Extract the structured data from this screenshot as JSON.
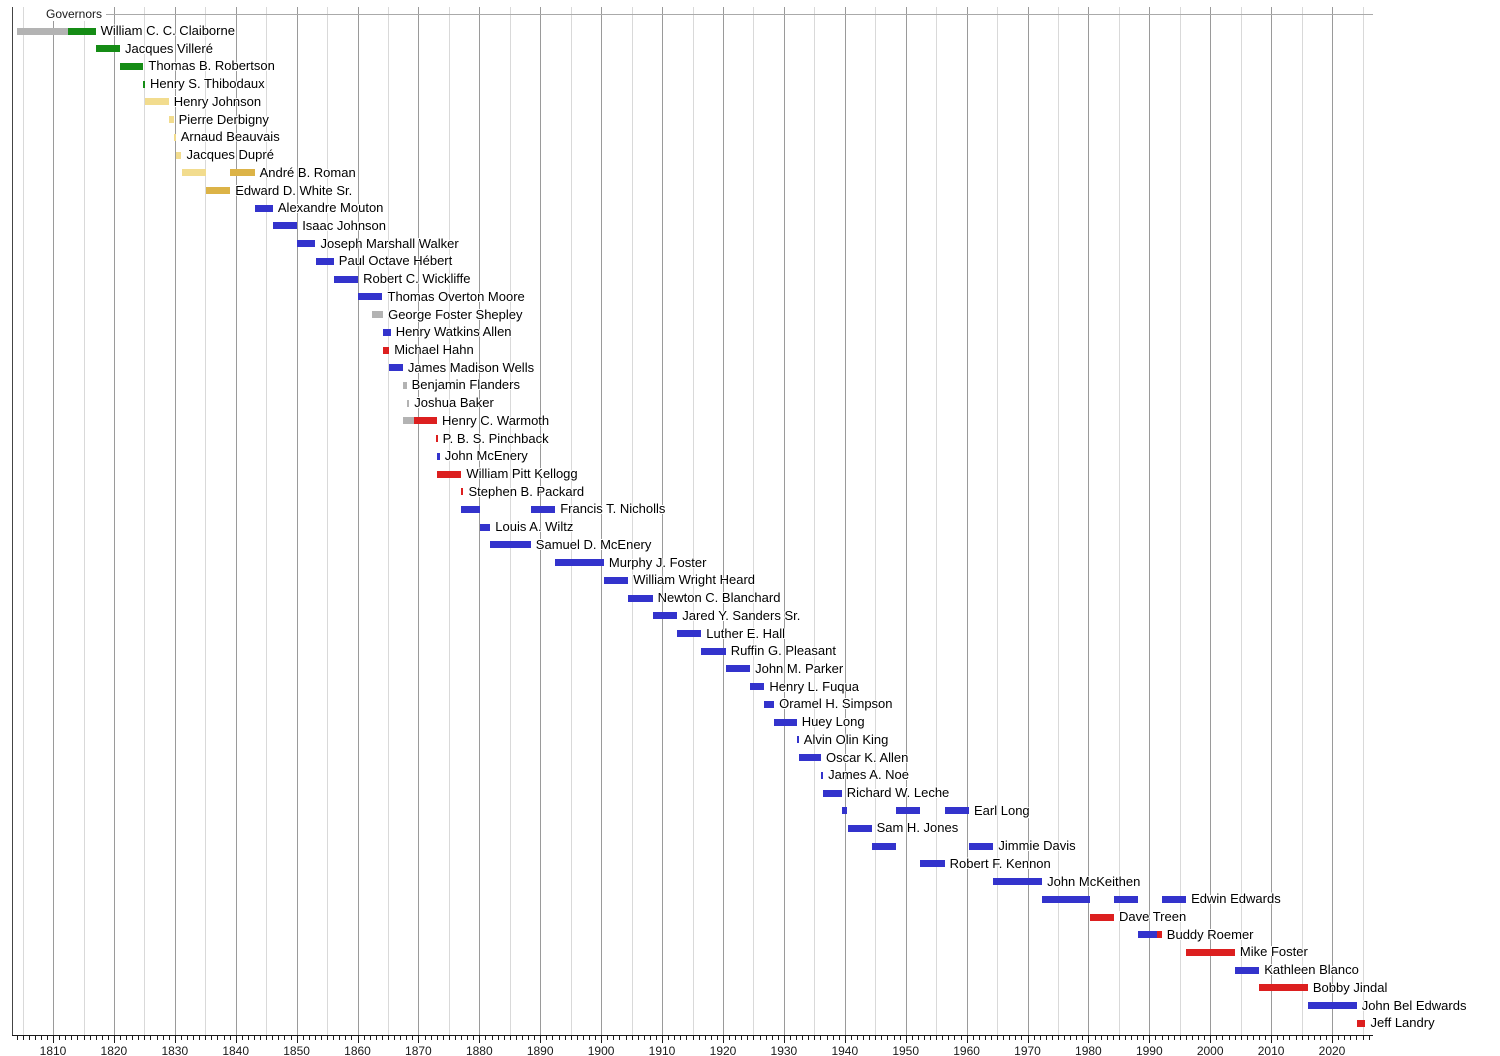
{
  "title": "Governors",
  "chart_data": {
    "type": "bar",
    "variant": "timeline-gantt",
    "axis": {
      "orientation": "horizontal-time",
      "start_year": 1803,
      "end_year": 2026,
      "gridline_interval_years": 5,
      "minor_tick_interval_years": 1,
      "tick_labels": [
        "1810",
        "1820",
        "1830",
        "1840",
        "1850",
        "1860",
        "1870",
        "1880",
        "1890",
        "1900",
        "1910",
        "1920",
        "1930",
        "1940",
        "1950",
        "1960",
        "1970",
        "1980",
        "1990",
        "2000",
        "2010",
        "2020"
      ]
    },
    "colors": {
      "gray": "#b3b3b3",
      "green": "#158c15",
      "paleyellow": "#f2dc8e",
      "gold": "#dcb347",
      "blue": "#3333cc",
      "red": "#dc1f1f"
    },
    "governors": [
      {
        "name": "William C. C. Claiborne",
        "segments": [
          {
            "from": 1804.0,
            "to": 1812.5,
            "color": "gray"
          },
          {
            "from": 1812.5,
            "to": 1817.0,
            "color": "green"
          }
        ]
      },
      {
        "name": "Jacques Villeré",
        "segments": [
          {
            "from": 1817.0,
            "to": 1821.0,
            "color": "green"
          }
        ]
      },
      {
        "name": "Thomas B. Robertson",
        "segments": [
          {
            "from": 1821.0,
            "to": 1824.85,
            "color": "green"
          }
        ]
      },
      {
        "name": "Henry S. Thibodaux",
        "segments": [
          {
            "from": 1824.85,
            "to": 1825.1,
            "color": "green"
          }
        ]
      },
      {
        "name": "Henry Johnson",
        "segments": [
          {
            "from": 1825.1,
            "to": 1829.0,
            "color": "paleyellow"
          }
        ]
      },
      {
        "name": "Pierre Derbigny",
        "segments": [
          {
            "from": 1829.0,
            "to": 1829.8,
            "color": "paleyellow"
          }
        ]
      },
      {
        "name": "Arnaud Beauvais",
        "segments": [
          {
            "from": 1829.8,
            "to": 1830.15,
            "color": "paleyellow"
          }
        ]
      },
      {
        "name": "Jacques Dupré",
        "segments": [
          {
            "from": 1830.15,
            "to": 1831.1,
            "color": "paleyellow"
          }
        ]
      },
      {
        "name": "André B. Roman",
        "segments": [
          {
            "from": 1831.1,
            "to": 1835.1,
            "color": "paleyellow"
          },
          {
            "from": 1839.1,
            "to": 1843.1,
            "color": "gold"
          }
        ]
      },
      {
        "name": "Edward D. White Sr.",
        "segments": [
          {
            "from": 1835.1,
            "to": 1839.1,
            "color": "gold"
          }
        ]
      },
      {
        "name": "Alexandre Mouton",
        "segments": [
          {
            "from": 1843.1,
            "to": 1846.1,
            "color": "blue"
          }
        ]
      },
      {
        "name": "Isaac Johnson",
        "segments": [
          {
            "from": 1846.1,
            "to": 1850.1,
            "color": "blue"
          }
        ]
      },
      {
        "name": "Joseph Marshall Walker",
        "segments": [
          {
            "from": 1850.1,
            "to": 1853.1,
            "color": "blue"
          }
        ]
      },
      {
        "name": "Paul Octave Hébert",
        "segments": [
          {
            "from": 1853.1,
            "to": 1856.1,
            "color": "blue"
          }
        ]
      },
      {
        "name": "Robert C. Wickliffe",
        "segments": [
          {
            "from": 1856.1,
            "to": 1860.1,
            "color": "blue"
          }
        ]
      },
      {
        "name": "Thomas Overton Moore",
        "segments": [
          {
            "from": 1860.1,
            "to": 1864.1,
            "color": "blue"
          }
        ]
      },
      {
        "name": "George Foster Shepley",
        "segments": [
          {
            "from": 1862.45,
            "to": 1864.2,
            "color": "gray"
          }
        ]
      },
      {
        "name": "Henry Watkins Allen",
        "segments": [
          {
            "from": 1864.1,
            "to": 1865.45,
            "color": "blue"
          }
        ]
      },
      {
        "name": "Michael Hahn",
        "segments": [
          {
            "from": 1864.2,
            "to": 1865.2,
            "color": "red"
          }
        ]
      },
      {
        "name": "James Madison Wells",
        "segments": [
          {
            "from": 1865.2,
            "to": 1867.45,
            "color": "blue"
          }
        ]
      },
      {
        "name": "Benjamin Flanders",
        "segments": [
          {
            "from": 1867.45,
            "to": 1868.05,
            "color": "gray"
          }
        ]
      },
      {
        "name": "Joshua Baker",
        "segments": [
          {
            "from": 1868.05,
            "to": 1868.5,
            "color": "gray"
          }
        ]
      },
      {
        "name": "Henry C. Warmoth",
        "segments": [
          {
            "from": 1867.45,
            "to": 1869.3,
            "color": "gray"
          },
          {
            "from": 1869.3,
            "to": 1873.05,
            "color": "red"
          }
        ]
      },
      {
        "name": "P. B. S. Pinchback",
        "segments": [
          {
            "from": 1872.9,
            "to": 1873.15,
            "color": "red"
          }
        ]
      },
      {
        "name": "John McEnery",
        "segments": [
          {
            "from": 1873.05,
            "to": 1873.5,
            "color": "blue"
          }
        ]
      },
      {
        "name": "William Pitt Kellogg",
        "segments": [
          {
            "from": 1873.05,
            "to": 1877.05,
            "color": "red"
          }
        ]
      },
      {
        "name": "Stephen B. Packard",
        "segments": [
          {
            "from": 1877.05,
            "to": 1877.4,
            "color": "red"
          }
        ]
      },
      {
        "name": "Francis T. Nicholls",
        "segments": [
          {
            "from": 1877.05,
            "to": 1880.05,
            "color": "blue"
          },
          {
            "from": 1888.45,
            "to": 1892.45,
            "color": "blue"
          }
        ]
      },
      {
        "name": "Louis A. Wiltz",
        "segments": [
          {
            "from": 1880.05,
            "to": 1881.8,
            "color": "blue"
          }
        ]
      },
      {
        "name": "Samuel D. McEnery",
        "segments": [
          {
            "from": 1881.8,
            "to": 1888.45,
            "color": "blue"
          }
        ]
      },
      {
        "name": "Murphy J. Foster",
        "segments": [
          {
            "from": 1892.45,
            "to": 1900.45,
            "color": "blue"
          }
        ]
      },
      {
        "name": "William Wright Heard",
        "segments": [
          {
            "from": 1900.45,
            "to": 1904.45,
            "color": "blue"
          }
        ]
      },
      {
        "name": "Newton C. Blanchard",
        "segments": [
          {
            "from": 1904.45,
            "to": 1908.45,
            "color": "blue"
          }
        ]
      },
      {
        "name": "Jared Y. Sanders Sr.",
        "segments": [
          {
            "from": 1908.45,
            "to": 1912.5,
            "color": "blue"
          }
        ]
      },
      {
        "name": "Luther E. Hall",
        "segments": [
          {
            "from": 1912.5,
            "to": 1916.45,
            "color": "blue"
          }
        ]
      },
      {
        "name": "Ruffin G. Pleasant",
        "segments": [
          {
            "from": 1916.45,
            "to": 1920.45,
            "color": "blue"
          }
        ]
      },
      {
        "name": "John M. Parker",
        "segments": [
          {
            "from": 1920.45,
            "to": 1924.45,
            "color": "blue"
          }
        ]
      },
      {
        "name": "Henry L. Fuqua",
        "segments": [
          {
            "from": 1924.45,
            "to": 1926.8,
            "color": "blue"
          }
        ]
      },
      {
        "name": "Oramel H. Simpson",
        "segments": [
          {
            "from": 1926.8,
            "to": 1928.4,
            "color": "blue"
          }
        ]
      },
      {
        "name": "Huey Long",
        "segments": [
          {
            "from": 1928.4,
            "to": 1932.1,
            "color": "blue"
          }
        ]
      },
      {
        "name": "Alvin Olin King",
        "segments": [
          {
            "from": 1932.1,
            "to": 1932.45,
            "color": "blue"
          }
        ]
      },
      {
        "name": "Oscar K. Allen",
        "segments": [
          {
            "from": 1932.45,
            "to": 1936.1,
            "color": "blue"
          }
        ]
      },
      {
        "name": "James A. Noe",
        "segments": [
          {
            "from": 1936.1,
            "to": 1936.45,
            "color": "blue"
          }
        ]
      },
      {
        "name": "Richard W. Leche",
        "segments": [
          {
            "from": 1936.45,
            "to": 1939.5,
            "color": "blue"
          }
        ]
      },
      {
        "name": "Earl Long",
        "segments": [
          {
            "from": 1939.5,
            "to": 1940.45,
            "color": "blue"
          },
          {
            "from": 1948.4,
            "to": 1952.4,
            "color": "blue"
          },
          {
            "from": 1956.4,
            "to": 1960.4,
            "color": "blue"
          }
        ]
      },
      {
        "name": "Sam H. Jones",
        "segments": [
          {
            "from": 1940.45,
            "to": 1944.4,
            "color": "blue"
          }
        ]
      },
      {
        "name": "Jimmie Davis",
        "segments": [
          {
            "from": 1944.4,
            "to": 1948.4,
            "color": "blue"
          },
          {
            "from": 1960.4,
            "to": 1964.4,
            "color": "blue"
          }
        ]
      },
      {
        "name": "Robert F. Kennon",
        "segments": [
          {
            "from": 1952.4,
            "to": 1956.4,
            "color": "blue"
          }
        ]
      },
      {
        "name": "John McKeithen",
        "segments": [
          {
            "from": 1964.4,
            "to": 1972.4,
            "color": "blue"
          }
        ]
      },
      {
        "name": "Edwin Edwards",
        "segments": [
          {
            "from": 1972.4,
            "to": 1980.2,
            "color": "blue"
          },
          {
            "from": 1984.2,
            "to": 1988.2,
            "color": "blue"
          },
          {
            "from": 1992.05,
            "to": 1996.05,
            "color": "blue"
          }
        ]
      },
      {
        "name": "Dave Treen",
        "segments": [
          {
            "from": 1980.2,
            "to": 1984.2,
            "color": "red"
          }
        ]
      },
      {
        "name": "Buddy Roemer",
        "segments": [
          {
            "from": 1988.2,
            "to": 1991.2,
            "color": "blue"
          },
          {
            "from": 1991.2,
            "to": 1992.05,
            "color": "red"
          }
        ]
      },
      {
        "name": "Mike Foster",
        "segments": [
          {
            "from": 1996.05,
            "to": 2004.05,
            "color": "red"
          }
        ]
      },
      {
        "name": "Kathleen Blanco",
        "segments": [
          {
            "from": 2004.05,
            "to": 2008.05,
            "color": "blue"
          }
        ]
      },
      {
        "name": "Bobby Jindal",
        "segments": [
          {
            "from": 2008.05,
            "to": 2016.05,
            "color": "red"
          }
        ]
      },
      {
        "name": "John Bel Edwards",
        "segments": [
          {
            "from": 2016.05,
            "to": 2024.05,
            "color": "blue"
          }
        ]
      },
      {
        "name": "Jeff Landry",
        "segments": [
          {
            "from": 2024.05,
            "to": 2025.5,
            "color": "red"
          }
        ]
      }
    ]
  }
}
